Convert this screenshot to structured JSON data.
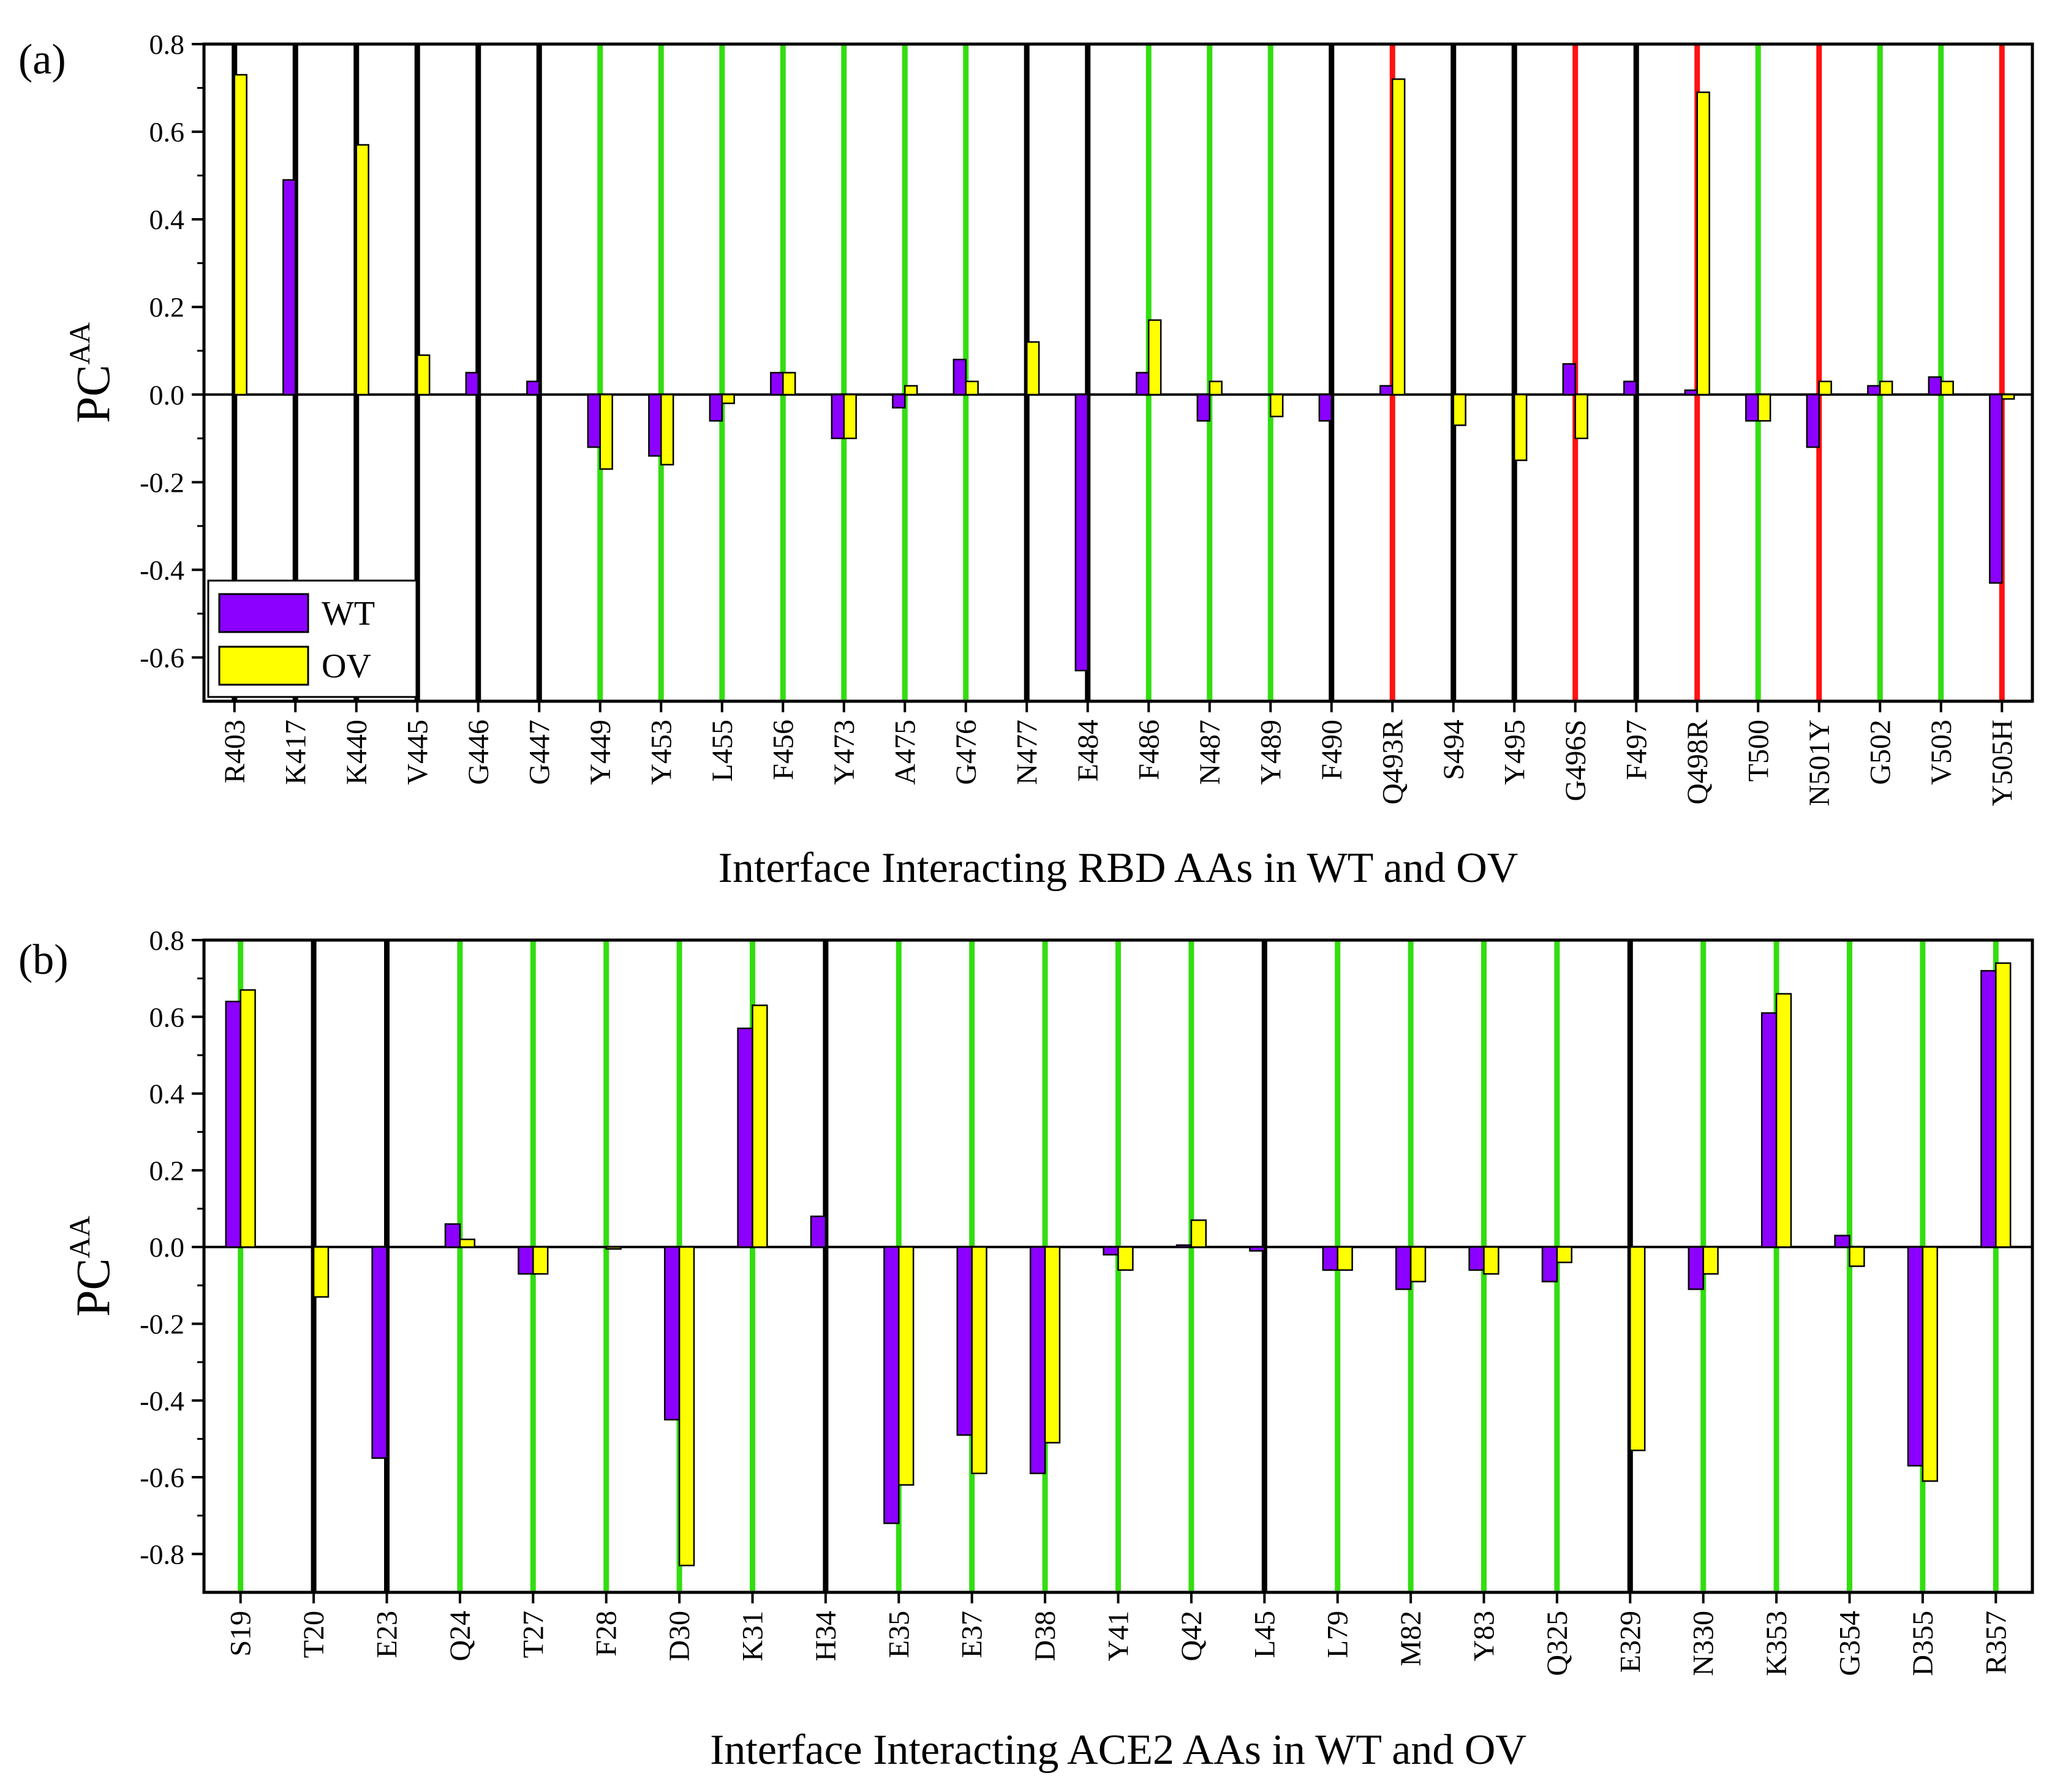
{
  "colors": {
    "wt": "#8B00FF",
    "ov": "#FFFF00",
    "line_green": "#33DD11",
    "line_red": "#FF1111",
    "line_black": "#000000"
  },
  "legend": {
    "items": [
      "WT",
      "OV"
    ]
  },
  "chart_data": [
    {
      "type": "bar",
      "panel_label": "(a)",
      "ylabel": "PC",
      "ylabel_sup": "AA",
      "xlabel": "Interface Interacting RBD AAs in WT and OV",
      "ylim": [
        -0.7,
        0.8
      ],
      "yticks": [
        -0.6,
        -0.4,
        -0.2,
        0.0,
        0.2,
        0.4,
        0.6,
        0.8
      ],
      "ytick_labels": [
        "-0.6",
        "-0.4",
        "-0.2",
        "0.0",
        "0.2",
        "0.4",
        "0.6",
        "0.8"
      ],
      "legend_position": "bottom-left",
      "categories": [
        "R403",
        "K417",
        "K440",
        "V445",
        "G446",
        "G447",
        "Y449",
        "Y453",
        "L455",
        "F456",
        "Y473",
        "A475",
        "G476",
        "N477",
        "E484",
        "F486",
        "N487",
        "Y489",
        "F490",
        "Q493R",
        "S494",
        "Y495",
        "G496S",
        "F497",
        "Q498R",
        "T500",
        "N501Y",
        "G502",
        "V503",
        "Y505H"
      ],
      "line_types": [
        "black",
        "black",
        "black",
        "black",
        "black",
        "black",
        "green",
        "green",
        "green",
        "green",
        "green",
        "green",
        "green",
        "black",
        "black",
        "green",
        "green",
        "green",
        "black",
        "red",
        "black",
        "black",
        "red",
        "black",
        "red",
        "green",
        "red",
        "green",
        "green",
        "red"
      ],
      "series": [
        {
          "name": "WT",
          "values": [
            0.0,
            0.49,
            0.0,
            0.0,
            0.05,
            0.03,
            -0.12,
            -0.14,
            -0.06,
            0.05,
            -0.1,
            -0.03,
            0.08,
            0.0,
            -0.63,
            0.05,
            -0.06,
            0.0,
            -0.06,
            0.02,
            0.0,
            0.0,
            0.07,
            0.03,
            0.01,
            -0.06,
            -0.12,
            0.02,
            0.04,
            -0.43
          ]
        },
        {
          "name": "OV",
          "values": [
            0.73,
            0.0,
            0.57,
            0.09,
            0.0,
            0.0,
            -0.17,
            -0.16,
            -0.02,
            0.05,
            -0.1,
            0.02,
            0.03,
            0.12,
            0.0,
            0.17,
            0.03,
            -0.05,
            0.0,
            0.72,
            -0.07,
            -0.15,
            -0.1,
            0.0,
            0.69,
            -0.06,
            0.03,
            0.03,
            0.03,
            -0.01
          ]
        }
      ]
    },
    {
      "type": "bar",
      "panel_label": "(b)",
      "ylabel": "PC",
      "ylabel_sup": "AA",
      "xlabel": "Interface Interacting ACE2 AAs in WT and OV",
      "ylim": [
        -0.9,
        0.8
      ],
      "yticks": [
        -0.8,
        -0.6,
        -0.4,
        -0.2,
        0.0,
        0.2,
        0.4,
        0.6,
        0.8
      ],
      "ytick_labels": [
        "-0.8",
        "-0.6",
        "-0.4",
        "-0.2",
        "0.0",
        "0.2",
        "0.4",
        "0.6",
        "0.8"
      ],
      "categories": [
        "S19",
        "T20",
        "E23",
        "Q24",
        "T27",
        "F28",
        "D30",
        "K31",
        "H34",
        "E35",
        "E37",
        "D38",
        "Y41",
        "Q42",
        "L45",
        "L79",
        "M82",
        "Y83",
        "Q325",
        "E329",
        "N330",
        "K353",
        "G354",
        "D355",
        "R357"
      ],
      "line_types": [
        "green",
        "black",
        "black",
        "green",
        "green",
        "green",
        "green",
        "green",
        "black",
        "green",
        "green",
        "green",
        "green",
        "green",
        "black",
        "green",
        "green",
        "green",
        "green",
        "black",
        "green",
        "green",
        "green",
        "green",
        "green"
      ],
      "series": [
        {
          "name": "WT",
          "values": [
            0.64,
            0.0,
            -0.55,
            0.06,
            -0.07,
            0.0,
            -0.45,
            0.57,
            0.08,
            -0.72,
            -0.49,
            -0.59,
            -0.02,
            0.005,
            -0.01,
            -0.06,
            -0.11,
            -0.06,
            -0.09,
            0.0,
            -0.11,
            0.61,
            0.03,
            -0.57,
            0.72
          ]
        },
        {
          "name": "OV",
          "values": [
            0.67,
            -0.13,
            0.0,
            0.02,
            -0.07,
            -0.005,
            -0.83,
            0.63,
            0.0,
            -0.62,
            -0.59,
            -0.51,
            -0.06,
            0.07,
            0.0,
            -0.06,
            -0.09,
            -0.07,
            -0.04,
            -0.53,
            -0.07,
            0.66,
            -0.05,
            -0.61,
            0.74
          ]
        }
      ]
    }
  ]
}
